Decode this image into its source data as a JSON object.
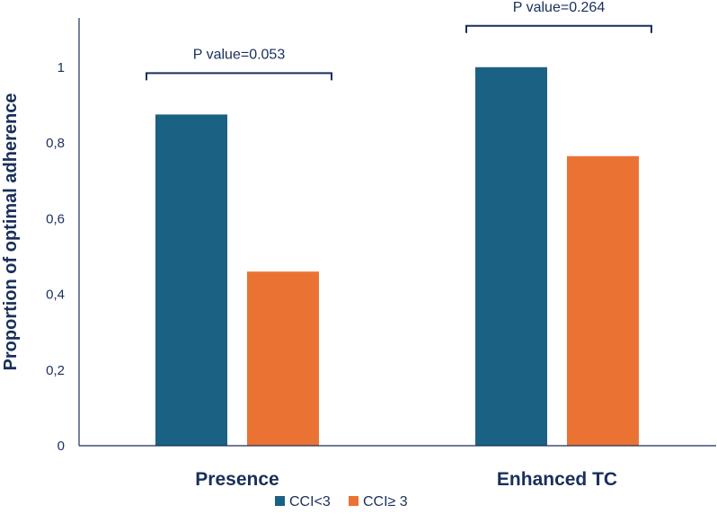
{
  "chart_data": {
    "type": "bar",
    "categories": [
      "Presence",
      "Enhanced TC"
    ],
    "series": [
      {
        "name": "CCI<3",
        "values": [
          0.875,
          1.0
        ],
        "color": "#1b6184"
      },
      {
        "name": "CCI≥ 3",
        "values": [
          0.46,
          0.765
        ],
        "color": "#ea7334"
      }
    ],
    "ylabel": "Proportion of optimal adherence",
    "xlabel": "",
    "ylim": [
      0,
      1.13
    ],
    "yticks": [
      0,
      0.2,
      0.4,
      0.6,
      0.8,
      1
    ],
    "ytick_labels": [
      "0",
      "0,2",
      "0,4",
      "0,6",
      "0,8",
      "1"
    ],
    "annotations": [
      {
        "category": "Presence",
        "text": "P value=0.053"
      },
      {
        "category": "Enhanced TC",
        "text": "P value=0.264"
      }
    ],
    "legend": {
      "position": "bottom-center"
    },
    "axis_color": "#1a2f5a"
  }
}
